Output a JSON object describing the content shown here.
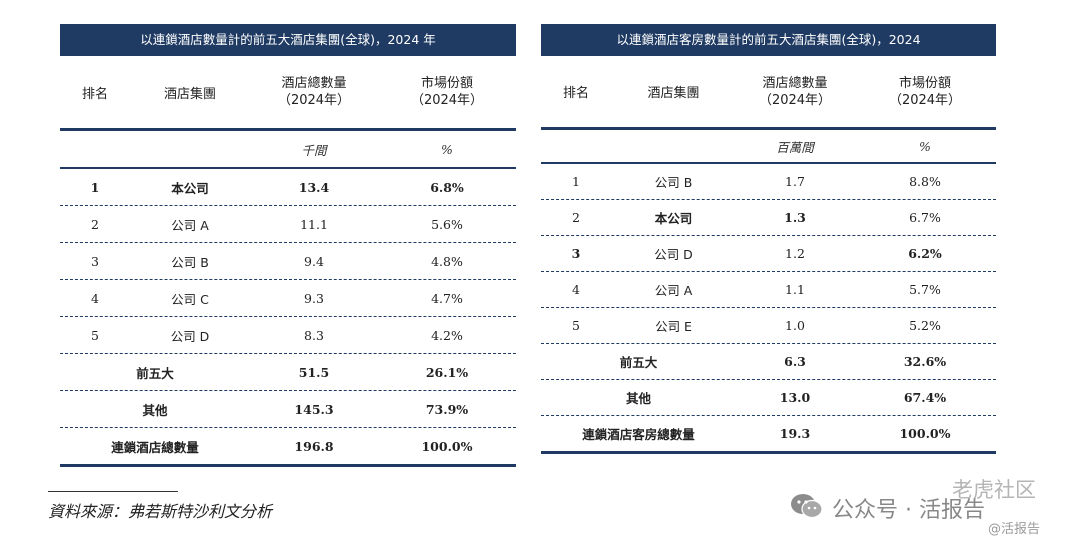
{
  "left": {
    "title": "以連鎖酒店數量計的前五大酒店集團(全球)，2024 年",
    "headers": {
      "rank": "排名",
      "group": "酒店集團",
      "count_l1": "酒店總數量",
      "count_l2": "（2024年）",
      "share_l1": "市場份額",
      "share_l2": "（2024年）"
    },
    "units": {
      "count": "千間",
      "share": "%"
    },
    "rows": [
      {
        "rank": "1",
        "group": "本公司",
        "count": "13.4",
        "share": "6.8%"
      },
      {
        "rank": "2",
        "group": "公司 A",
        "count": "11.1",
        "share": "5.6%"
      },
      {
        "rank": "3",
        "group": "公司 B",
        "count": "9.4",
        "share": "4.8%"
      },
      {
        "rank": "4",
        "group": "公司 C",
        "count": "9.3",
        "share": "4.7%"
      },
      {
        "rank": "5",
        "group": "公司 D",
        "count": "8.3",
        "share": "4.2%"
      }
    ],
    "summary": [
      {
        "label": "前五大",
        "count": "51.5",
        "share": "26.1%"
      },
      {
        "label": "其他",
        "count": "145.3",
        "share": "73.9%"
      },
      {
        "label": "連鎖酒店總數量",
        "count": "196.8",
        "share": "100.0%"
      }
    ]
  },
  "right": {
    "title": "以連鎖酒店客房數量計的前五大酒店集團(全球)，2024",
    "headers": {
      "rank": "排名",
      "group": "酒店集團",
      "count_l1": "酒店總數量",
      "count_l2": "（2024年）",
      "share_l1": "市場份額",
      "share_l2": "（2024年）"
    },
    "units": {
      "count": "百萬間",
      "share": "%"
    },
    "rows": [
      {
        "rank": "1",
        "group": "公司 B",
        "count": "1.7",
        "share": "8.8%"
      },
      {
        "rank": "2",
        "group": "本公司",
        "count": "1.3",
        "share": "6.7%"
      },
      {
        "rank": "3",
        "group": "公司 D",
        "count": "1.2",
        "share": "6.2%"
      },
      {
        "rank": "4",
        "group": "公司 A",
        "count": "1.1",
        "share": "5.7%"
      },
      {
        "rank": "5",
        "group": "公司 E",
        "count": "1.0",
        "share": "5.2%"
      }
    ],
    "summary": [
      {
        "label": "前五大",
        "count": "6.3",
        "share": "32.6%"
      },
      {
        "label": "其他",
        "count": "13.0",
        "share": "67.4%"
      },
      {
        "label": "連鎖酒店客房總數量",
        "count": "19.3",
        "share": "100.0%"
      }
    ]
  },
  "source": "資料來源：弗若斯特沙利文分析",
  "watermark": {
    "line1": "老虎社区",
    "line2": "公众号 · 活报告",
    "line3": "@活报告",
    "icon": "wechat-icon"
  }
}
